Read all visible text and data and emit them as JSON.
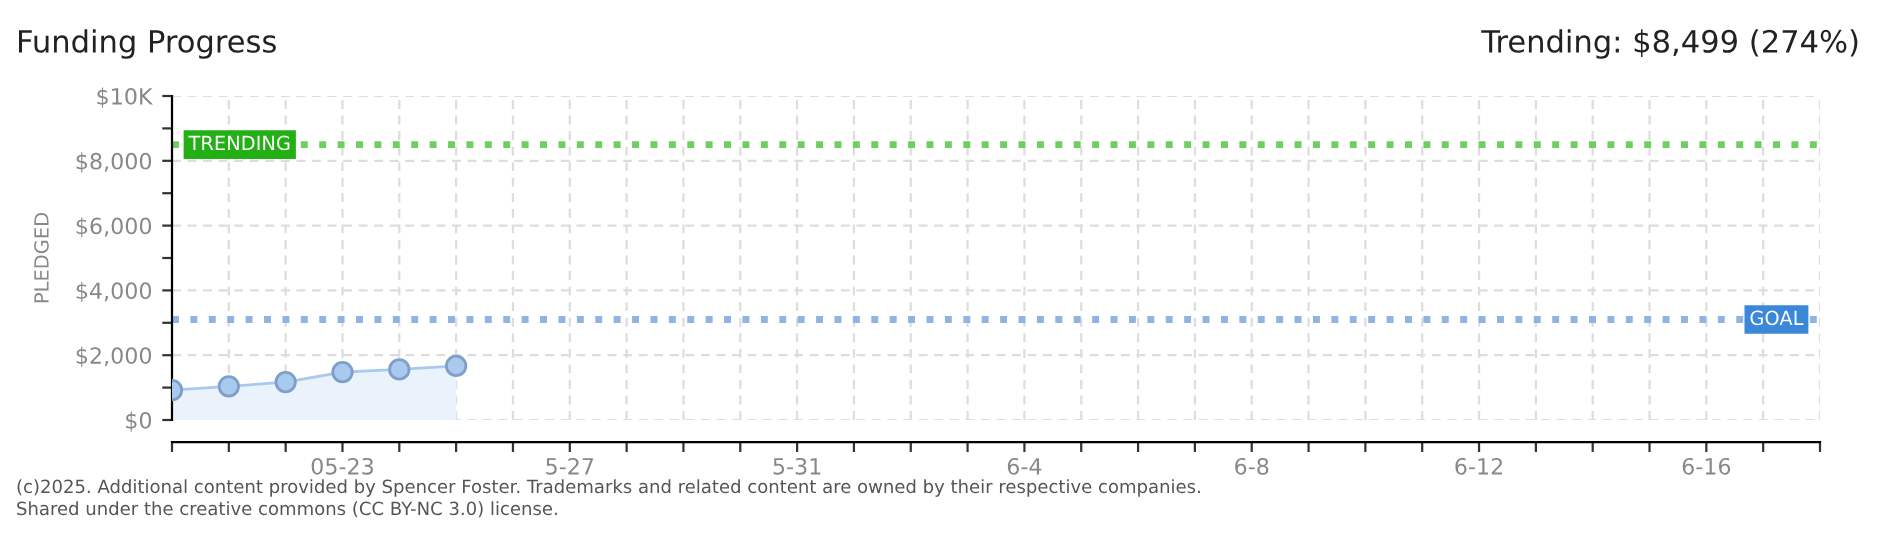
{
  "chart_data": {
    "type": "area",
    "title": "Funding Progress",
    "subtitle": "Trending: $8,499 (274%)",
    "ylabel": "PLEDGED",
    "x": [
      "2025-05-20",
      "2025-05-21",
      "2025-05-22",
      "2025-05-23",
      "2025-05-24",
      "2025-05-25"
    ],
    "series": [
      {
        "color": "#a9c9ee",
        "values": [
          920,
          1040,
          1170,
          1480,
          1560,
          1670
        ]
      }
    ],
    "marker": "circle",
    "grid": true,
    "legend": false,
    "ylim": [
      0,
      10000
    ],
    "yticks": [
      {
        "value": 0,
        "label": "$0"
      },
      {
        "value": 1000,
        "label": null
      },
      {
        "value": 2000,
        "label": "$2,000"
      },
      {
        "value": 3000,
        "label": null
      },
      {
        "value": 4000,
        "label": "$4,000"
      },
      {
        "value": 5000,
        "label": null
      },
      {
        "value": 6000,
        "label": "$6,000"
      },
      {
        "value": 7000,
        "label": null
      },
      {
        "value": 8000,
        "label": "$8,000"
      },
      {
        "value": 9000,
        "label": null
      },
      {
        "value": 10000,
        "label": "$10K"
      }
    ],
    "xlim": [
      "2025-05-20",
      "2025-06-18"
    ],
    "xticks": [
      {
        "value": "2025-05-20",
        "label": null
      },
      {
        "value": "2025-05-21",
        "label": null
      },
      {
        "value": "2025-05-22",
        "label": null
      },
      {
        "value": "2025-05-23",
        "label": "05-23"
      },
      {
        "value": "2025-05-24",
        "label": null
      },
      {
        "value": "2025-05-25",
        "label": null
      },
      {
        "value": "2025-05-26",
        "label": null
      },
      {
        "value": "2025-05-27",
        "label": "5-27"
      },
      {
        "value": "2025-05-28",
        "label": null
      },
      {
        "value": "2025-05-29",
        "label": null
      },
      {
        "value": "2025-05-30",
        "label": null
      },
      {
        "value": "2025-05-31",
        "label": "5-31"
      },
      {
        "value": "2025-06-01",
        "label": null
      },
      {
        "value": "2025-06-02",
        "label": null
      },
      {
        "value": "2025-06-03",
        "label": null
      },
      {
        "value": "2025-06-04",
        "label": "6-4"
      },
      {
        "value": "2025-06-05",
        "label": null
      },
      {
        "value": "2025-06-06",
        "label": null
      },
      {
        "value": "2025-06-07",
        "label": null
      },
      {
        "value": "2025-06-08",
        "label": "6-8"
      },
      {
        "value": "2025-06-09",
        "label": null
      },
      {
        "value": "2025-06-10",
        "label": null
      },
      {
        "value": "2025-06-11",
        "label": null
      },
      {
        "value": "2025-06-12",
        "label": "6-12"
      },
      {
        "value": "2025-06-13",
        "label": null
      },
      {
        "value": "2025-06-14",
        "label": null
      },
      {
        "value": "2025-06-15",
        "label": null
      },
      {
        "value": "2025-06-16",
        "label": "6-16"
      },
      {
        "value": "2025-06-17",
        "label": null
      },
      {
        "value": "2025-06-18",
        "label": null
      }
    ],
    "ref_lines": [
      {
        "axis": "y",
        "value": 8499,
        "label": "TRENDING",
        "color": "#6ccf5f",
        "line_style": "dotted"
      },
      {
        "axis": "y",
        "value": 3100,
        "label": "GOAL",
        "color": "#8fb4e3",
        "line_style": "dotted"
      }
    ],
    "annotations": [
      "(c)2025. Additional content provided by Spencer Foster. Trademarks and related content are owned by their respective companies.",
      "Shared under the creative commons (CC BY-NC 3.0) license."
    ]
  }
}
